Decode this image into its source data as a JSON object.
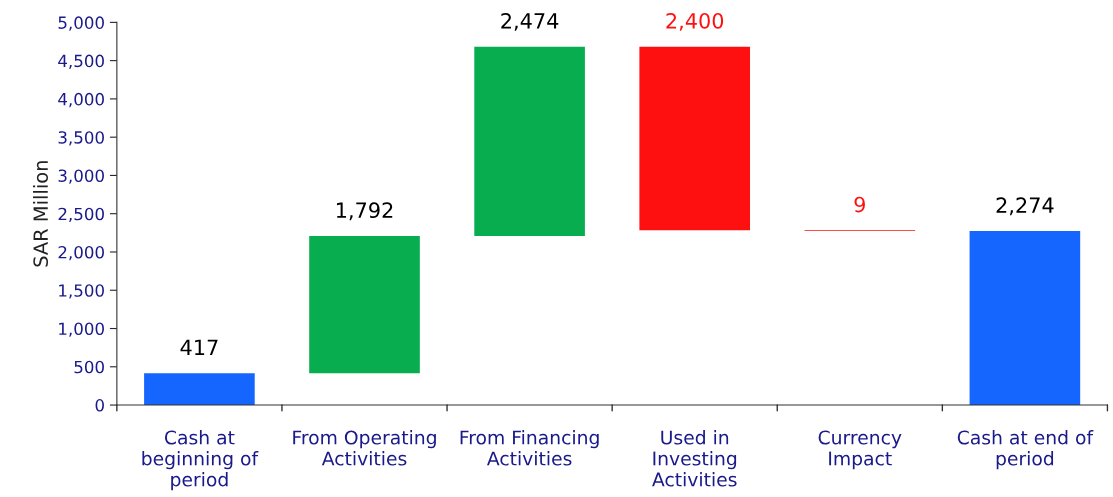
{
  "chart_data": {
    "type": "bar",
    "ylabel": "SAR Million",
    "categories": [
      "Cash at beginning of period",
      "From Operating Activities",
      "From Financing Activities",
      "Used in Investing Activities",
      "Currency Impact",
      "Cash at end of period"
    ],
    "values": [
      417,
      1792,
      2474,
      -2400,
      -9,
      2274
    ],
    "base": [
      0,
      417,
      2209,
      4683,
      2283,
      0
    ],
    "colors": [
      "#1565ff",
      "#08ad4f",
      "#08ad4f",
      "#ff1010",
      "#ff1010",
      "#1565ff"
    ],
    "value_labels": [
      "417",
      "1,792",
      "2,474",
      "2,400",
      "9",
      "2,274"
    ],
    "ylim": [
      0,
      5000
    ],
    "yticks": [
      0,
      500,
      {
        "value": 1000,
        "label": "1,000"
      },
      {
        "value": 1500,
        "label": "1,500"
      },
      {
        "value": 2000,
        "label": "2,000"
      },
      {
        "value": 2500,
        "label": "2,500"
      },
      {
        "value": 3000,
        "label": "3,000"
      },
      {
        "value": 3500,
        "label": "3,500"
      },
      {
        "value": 4000,
        "label": "4,000"
      },
      {
        "value": 4500,
        "label": "4,500"
      },
      {
        "value": 5000,
        "label": "5,000"
      }
    ],
    "grid": false
  }
}
